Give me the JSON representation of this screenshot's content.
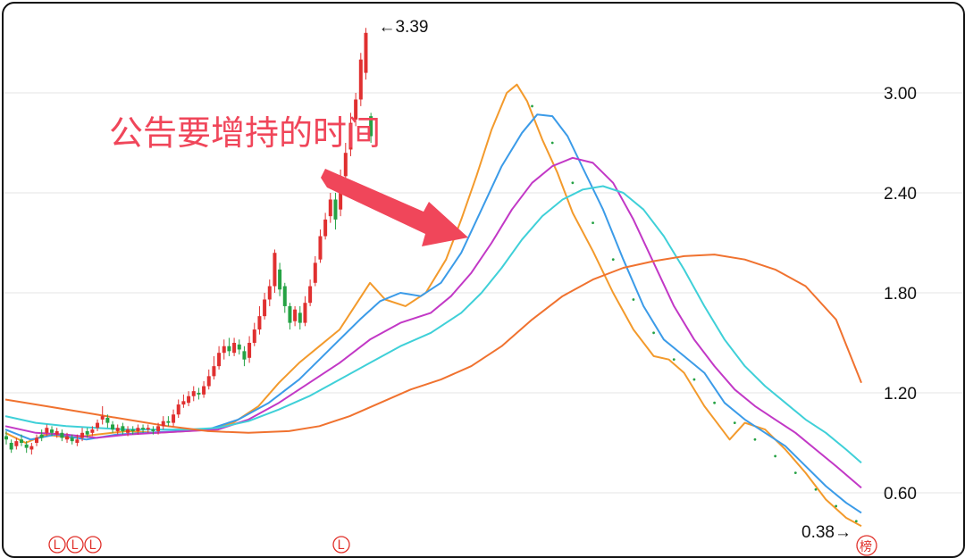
{
  "chart_data": {
    "type": "candlestick",
    "yticks": [
      3.0,
      2.4,
      1.8,
      1.2,
      0.6
    ],
    "ytick_labels": [
      "3.00",
      "2.40",
      "1.80",
      "1.20",
      "0.60"
    ],
    "ylim": [
      0.3,
      3.5
    ],
    "grid": true,
    "high_label": "3.39",
    "low_label": "0.38",
    "callout_text": "公告要增持的时间",
    "markers": [
      "L",
      "L",
      "L",
      "L"
    ],
    "corner_marker": "榜",
    "colors": {
      "up": "#e03030",
      "down": "#25a244",
      "ma_fast": "#f39a2c",
      "ma_mid1": "#3b9be8",
      "ma_mid2": "#c238c6",
      "ma_mid3": "#3fd0d8",
      "ma_slow": "#f0722f",
      "callout": "#f0465a",
      "arrow": "#f0465a"
    },
    "series": [
      {
        "key": "ma_fast",
        "points": [
          [
            0,
            0.96
          ],
          [
            4,
            0.9
          ],
          [
            8,
            0.95
          ],
          [
            13,
            0.93
          ],
          [
            18,
            0.95
          ],
          [
            24,
            0.97
          ],
          [
            30,
            0.96
          ],
          [
            36,
            0.97
          ],
          [
            40,
            0.98
          ],
          [
            45,
            1.02
          ],
          [
            50,
            1.12
          ],
          [
            54,
            1.26
          ],
          [
            58,
            1.38
          ],
          [
            62,
            1.48
          ],
          [
            66,
            1.58
          ],
          [
            69,
            1.72
          ],
          [
            72,
            1.86
          ],
          [
            75,
            1.76
          ],
          [
            79,
            1.72
          ],
          [
            83,
            1.8
          ],
          [
            87,
            2.0
          ],
          [
            90,
            2.24
          ],
          [
            93,
            2.5
          ],
          [
            96,
            2.78
          ],
          [
            99,
            3.0
          ],
          [
            101,
            3.05
          ],
          [
            103,
            2.95
          ],
          [
            106,
            2.72
          ],
          [
            109,
            2.52
          ],
          [
            112,
            2.28
          ],
          [
            116,
            2.05
          ],
          [
            120,
            1.8
          ],
          [
            124,
            1.58
          ],
          [
            128,
            1.42
          ],
          [
            131,
            1.4
          ],
          [
            134,
            1.32
          ],
          [
            138,
            1.12
          ],
          [
            141,
            1.0
          ],
          [
            143,
            0.92
          ],
          [
            146,
            1.02
          ],
          [
            150,
            0.98
          ],
          [
            154,
            0.86
          ],
          [
            158,
            0.72
          ],
          [
            162,
            0.56
          ],
          [
            166,
            0.45
          ],
          [
            169,
            0.4
          ]
        ]
      },
      {
        "key": "ma_mid1",
        "points": [
          [
            0,
            0.98
          ],
          [
            5,
            0.92
          ],
          [
            10,
            0.95
          ],
          [
            16,
            0.92
          ],
          [
            22,
            0.95
          ],
          [
            28,
            0.96
          ],
          [
            34,
            0.97
          ],
          [
            40,
            0.98
          ],
          [
            46,
            1.04
          ],
          [
            52,
            1.14
          ],
          [
            58,
            1.28
          ],
          [
            62,
            1.4
          ],
          [
            66,
            1.52
          ],
          [
            70,
            1.64
          ],
          [
            74,
            1.75
          ],
          [
            78,
            1.8
          ],
          [
            82,
            1.78
          ],
          [
            86,
            1.86
          ],
          [
            90,
            2.04
          ],
          [
            94,
            2.3
          ],
          [
            98,
            2.56
          ],
          [
            102,
            2.76
          ],
          [
            105,
            2.87
          ],
          [
            108,
            2.86
          ],
          [
            111,
            2.74
          ],
          [
            114,
            2.55
          ],
          [
            118,
            2.3
          ],
          [
            122,
            2.0
          ],
          [
            126,
            1.72
          ],
          [
            130,
            1.52
          ],
          [
            134,
            1.42
          ],
          [
            138,
            1.32
          ],
          [
            142,
            1.14
          ],
          [
            146,
            1.04
          ],
          [
            150,
            0.96
          ],
          [
            154,
            0.88
          ],
          [
            158,
            0.76
          ],
          [
            162,
            0.64
          ],
          [
            166,
            0.54
          ],
          [
            169,
            0.48
          ]
        ]
      },
      {
        "key": "ma_mid2",
        "points": [
          [
            0,
            1.0
          ],
          [
            6,
            0.96
          ],
          [
            12,
            0.95
          ],
          [
            18,
            0.93
          ],
          [
            24,
            0.95
          ],
          [
            30,
            0.96
          ],
          [
            36,
            0.97
          ],
          [
            42,
            0.98
          ],
          [
            48,
            1.04
          ],
          [
            54,
            1.14
          ],
          [
            60,
            1.26
          ],
          [
            66,
            1.38
          ],
          [
            72,
            1.52
          ],
          [
            78,
            1.62
          ],
          [
            84,
            1.68
          ],
          [
            88,
            1.78
          ],
          [
            92,
            1.92
          ],
          [
            96,
            2.1
          ],
          [
            100,
            2.3
          ],
          [
            104,
            2.46
          ],
          [
            108,
            2.56
          ],
          [
            112,
            2.61
          ],
          [
            116,
            2.58
          ],
          [
            120,
            2.46
          ],
          [
            124,
            2.24
          ],
          [
            128,
            1.98
          ],
          [
            132,
            1.72
          ],
          [
            136,
            1.52
          ],
          [
            140,
            1.36
          ],
          [
            144,
            1.22
          ],
          [
            148,
            1.12
          ],
          [
            152,
            1.04
          ],
          [
            156,
            0.96
          ],
          [
            160,
            0.86
          ],
          [
            164,
            0.76
          ],
          [
            169,
            0.63
          ]
        ]
      },
      {
        "key": "ma_mid3",
        "points": [
          [
            0,
            1.06
          ],
          [
            6,
            1.02
          ],
          [
            12,
            1.0
          ],
          [
            18,
            0.99
          ],
          [
            24,
            0.98
          ],
          [
            30,
            0.98
          ],
          [
            36,
            0.98
          ],
          [
            42,
            0.99
          ],
          [
            48,
            1.03
          ],
          [
            54,
            1.1
          ],
          [
            60,
            1.18
          ],
          [
            66,
            1.28
          ],
          [
            72,
            1.38
          ],
          [
            78,
            1.48
          ],
          [
            84,
            1.56
          ],
          [
            90,
            1.68
          ],
          [
            94,
            1.8
          ],
          [
            98,
            1.95
          ],
          [
            102,
            2.12
          ],
          [
            106,
            2.26
          ],
          [
            110,
            2.36
          ],
          [
            114,
            2.42
          ],
          [
            118,
            2.44
          ],
          [
            122,
            2.4
          ],
          [
            126,
            2.3
          ],
          [
            130,
            2.14
          ],
          [
            134,
            1.94
          ],
          [
            138,
            1.72
          ],
          [
            142,
            1.52
          ],
          [
            146,
            1.36
          ],
          [
            150,
            1.24
          ],
          [
            154,
            1.14
          ],
          [
            158,
            1.04
          ],
          [
            162,
            0.96
          ],
          [
            166,
            0.86
          ],
          [
            169,
            0.78
          ]
        ]
      },
      {
        "key": "ma_slow",
        "points": [
          [
            0,
            1.16
          ],
          [
            8,
            1.12
          ],
          [
            16,
            1.08
          ],
          [
            24,
            1.04
          ],
          [
            32,
            1.0
          ],
          [
            40,
            0.97
          ],
          [
            48,
            0.96
          ],
          [
            56,
            0.97
          ],
          [
            62,
            1.0
          ],
          [
            68,
            1.06
          ],
          [
            74,
            1.14
          ],
          [
            80,
            1.22
          ],
          [
            86,
            1.28
          ],
          [
            92,
            1.36
          ],
          [
            98,
            1.48
          ],
          [
            104,
            1.64
          ],
          [
            110,
            1.78
          ],
          [
            116,
            1.88
          ],
          [
            122,
            1.95
          ],
          [
            128,
            1.99
          ],
          [
            134,
            2.02
          ],
          [
            140,
            2.03
          ],
          [
            146,
            2.0
          ],
          [
            152,
            1.94
          ],
          [
            158,
            1.84
          ],
          [
            164,
            1.64
          ],
          [
            169,
            1.26
          ]
        ]
      },
      {
        "key": "ma_dots",
        "points": [
          [
            104,
            2.92
          ],
          [
            108,
            2.7
          ],
          [
            112,
            2.46
          ],
          [
            116,
            2.22
          ],
          [
            120,
            2.0
          ],
          [
            124,
            1.76
          ],
          [
            128,
            1.56
          ],
          [
            132,
            1.4
          ],
          [
            136,
            1.28
          ],
          [
            140,
            1.14
          ],
          [
            144,
            1.02
          ],
          [
            148,
            0.92
          ],
          [
            152,
            0.82
          ],
          [
            156,
            0.72
          ],
          [
            160,
            0.62
          ],
          [
            164,
            0.52
          ],
          [
            168,
            0.43
          ]
        ]
      }
    ],
    "candles": [
      [
        0,
        0.94,
        0.92,
        0.97,
        0.89
      ],
      [
        1,
        0.9,
        0.86,
        0.92,
        0.84
      ],
      [
        2,
        0.88,
        0.91,
        0.93,
        0.86
      ],
      [
        3,
        0.92,
        0.9,
        0.95,
        0.88
      ],
      [
        4,
        0.89,
        0.87,
        0.91,
        0.84
      ],
      [
        5,
        0.86,
        0.88,
        0.9,
        0.83
      ],
      [
        6,
        0.9,
        0.93,
        0.95,
        0.88
      ],
      [
        7,
        0.95,
        0.93,
        0.98,
        0.91
      ],
      [
        8,
        0.96,
        0.99,
        1.01,
        0.94
      ],
      [
        9,
        0.98,
        0.96,
        1.0,
        0.94
      ],
      [
        10,
        0.95,
        0.97,
        0.99,
        0.93
      ],
      [
        11,
        0.96,
        0.93,
        0.98,
        0.91
      ],
      [
        12,
        0.92,
        0.94,
        0.96,
        0.9
      ],
      [
        13,
        0.93,
        0.91,
        0.95,
        0.89
      ],
      [
        14,
        0.9,
        0.92,
        0.95,
        0.88
      ],
      [
        15,
        0.93,
        0.96,
        0.99,
        0.91
      ],
      [
        16,
        0.97,
        0.95,
        0.99,
        0.93
      ],
      [
        17,
        0.96,
        0.98,
        1.0,
        0.94
      ],
      [
        18,
        0.99,
        1.02,
        1.04,
        0.97
      ],
      [
        19,
        1.04,
        1.06,
        1.12,
        1.01
      ],
      [
        20,
        1.05,
        1.02,
        1.07,
        0.99
      ],
      [
        21,
        1.01,
        0.98,
        1.03,
        0.96
      ],
      [
        22,
        0.97,
        0.99,
        1.01,
        0.95
      ],
      [
        23,
        1.0,
        0.97,
        1.02,
        0.95
      ],
      [
        24,
        0.96,
        0.98,
        1.0,
        0.94
      ],
      [
        25,
        0.98,
        0.97,
        1.0,
        0.95
      ],
      [
        26,
        0.97,
        0.99,
        1.01,
        0.95
      ],
      [
        27,
        0.99,
        0.98,
        1.01,
        0.96
      ],
      [
        28,
        0.98,
        0.99,
        1.01,
        0.96
      ],
      [
        29,
        0.98,
        0.97,
        1.0,
        0.95
      ],
      [
        30,
        0.97,
        1.0,
        1.02,
        0.95
      ],
      [
        31,
        1.0,
        1.03,
        1.06,
        0.98
      ],
      [
        32,
        1.03,
        1.02,
        1.06,
        1.0
      ],
      [
        33,
        1.02,
        1.07,
        1.1,
        1.0
      ],
      [
        34,
        1.07,
        1.13,
        1.16,
        1.05
      ],
      [
        35,
        1.13,
        1.15,
        1.19,
        1.11
      ],
      [
        36,
        1.14,
        1.18,
        1.21,
        1.12
      ],
      [
        37,
        1.18,
        1.21,
        1.24,
        1.15
      ],
      [
        38,
        1.2,
        1.19,
        1.23,
        1.16
      ],
      [
        39,
        1.19,
        1.24,
        1.27,
        1.17
      ],
      [
        40,
        1.24,
        1.3,
        1.34,
        1.22
      ],
      [
        41,
        1.3,
        1.36,
        1.42,
        1.28
      ],
      [
        42,
        1.36,
        1.44,
        1.48,
        1.34
      ],
      [
        43,
        1.44,
        1.48,
        1.52,
        1.4
      ],
      [
        44,
        1.48,
        1.45,
        1.53,
        1.42
      ],
      [
        45,
        1.44,
        1.5,
        1.53,
        1.42
      ],
      [
        46,
        1.49,
        1.46,
        1.52,
        1.43
      ],
      [
        47,
        1.45,
        1.4,
        1.48,
        1.36
      ],
      [
        48,
        1.41,
        1.5,
        1.54,
        1.38
      ],
      [
        49,
        1.5,
        1.58,
        1.62,
        1.48
      ],
      [
        50,
        1.58,
        1.66,
        1.72,
        1.55
      ],
      [
        51,
        1.66,
        1.76,
        1.8,
        1.64
      ],
      [
        52,
        1.76,
        1.84,
        1.88,
        1.72
      ],
      [
        53,
        1.84,
        2.04,
        2.06,
        1.8
      ],
      [
        54,
        1.94,
        1.82,
        1.98,
        1.78
      ],
      [
        55,
        1.84,
        1.72,
        1.86,
        1.68
      ],
      [
        56,
        1.72,
        1.62,
        1.74,
        1.58
      ],
      [
        57,
        1.63,
        1.7,
        1.72,
        1.6
      ],
      [
        58,
        1.68,
        1.62,
        1.72,
        1.58
      ],
      [
        59,
        1.62,
        1.74,
        1.78,
        1.6
      ],
      [
        60,
        1.74,
        1.84,
        1.88,
        1.72
      ],
      [
        61,
        1.86,
        1.98,
        2.02,
        1.84
      ],
      [
        62,
        2.0,
        2.14,
        2.18,
        1.98
      ],
      [
        63,
        2.14,
        2.24,
        2.28,
        2.12
      ],
      [
        64,
        2.26,
        2.36,
        2.4,
        2.22
      ],
      [
        65,
        2.36,
        2.24,
        2.4,
        2.18
      ],
      [
        66,
        2.3,
        2.5,
        2.54,
        2.26
      ],
      [
        67,
        2.5,
        2.64,
        2.7,
        2.48
      ],
      [
        68,
        2.66,
        2.82,
        2.88,
        2.62
      ],
      [
        69,
        2.84,
        2.96,
        3.0,
        2.8
      ],
      [
        70,
        2.96,
        3.2,
        3.24,
        2.92
      ],
      [
        71,
        3.12,
        3.36,
        3.39,
        3.08
      ],
      [
        72,
        2.86,
        2.74,
        2.88,
        2.7
      ]
    ]
  }
}
